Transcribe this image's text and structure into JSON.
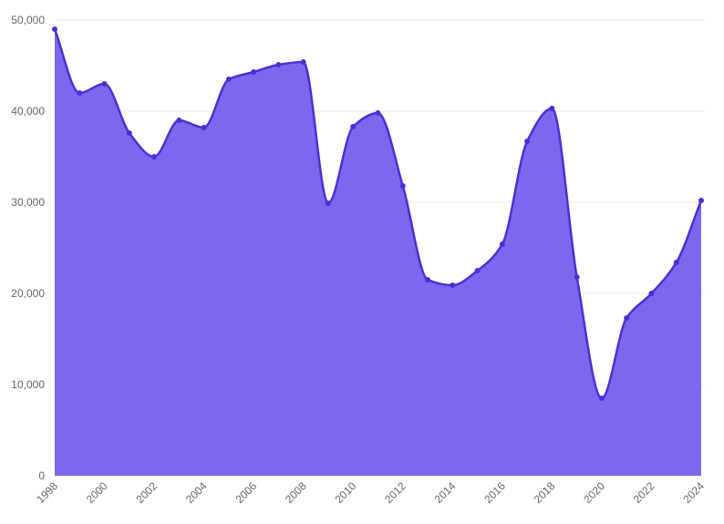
{
  "chart_data": {
    "type": "area",
    "title": "",
    "xlabel": "",
    "ylabel": "",
    "x": [
      1998,
      1999,
      2000,
      2001,
      2002,
      2003,
      2004,
      2005,
      2006,
      2007,
      2008,
      2009,
      2010,
      2011,
      2012,
      2013,
      2014,
      2015,
      2016,
      2017,
      2018,
      2019,
      2020,
      2021,
      2022,
      2023,
      2024
    ],
    "series": [
      {
        "values": [
          49000,
          42000,
          43000,
          37600,
          35000,
          39000,
          38200,
          43500,
          44300,
          45100,
          45400,
          29900,
          38300,
          39800,
          31800,
          21500,
          20900,
          22500,
          25400,
          36700,
          40300,
          21800,
          8500,
          17300,
          20000,
          23400,
          30200
        ]
      }
    ],
    "x_tick_labels": [
      "1998",
      "2000",
      "2002",
      "2004",
      "2006",
      "2008",
      "2010",
      "2012",
      "2014",
      "2016",
      "2018",
      "2020",
      "2022",
      "2024"
    ],
    "y_tick_labels": [
      "0",
      "10,000",
      "20,000",
      "30,000",
      "40,000",
      "50,000"
    ],
    "y_ticks": [
      0,
      10000,
      20000,
      30000,
      40000,
      50000
    ],
    "ylim": [
      0,
      50000
    ],
    "xlim": [
      1998,
      2024
    ],
    "grid": "horizontal",
    "legend": "none",
    "colors": {
      "line": "#4b2fd6",
      "fill": "#7b68ee",
      "grid": "#ebebeb",
      "tick_text": "#666666"
    }
  }
}
